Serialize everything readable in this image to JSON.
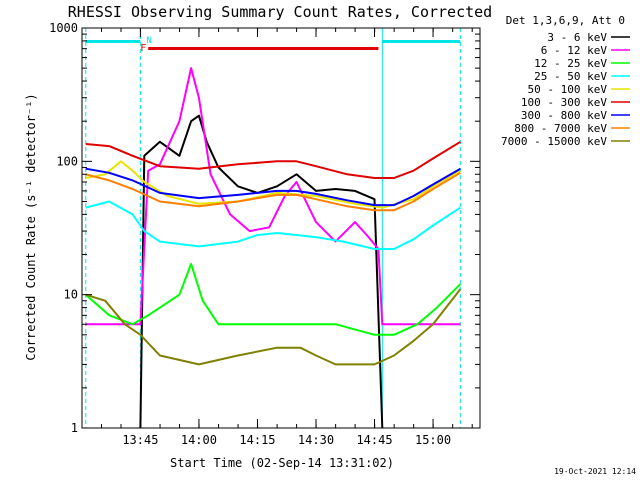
{
  "chart_data": {
    "type": "line",
    "title": "RHESSI Observing Summary Count Rates, Corrected",
    "xlabel": "Start Time (02-Sep-14 13:31:02)",
    "ylabel": "Corrected Count Rate (s⁻¹ detector⁻¹)",
    "yscale": "log",
    "ylim": [
      1,
      1000
    ],
    "xlim_minutes_after_start": [
      0,
      100
    ],
    "x_ticks": [
      "13:45",
      "14:00",
      "14:15",
      "14:30",
      "14:45",
      "15:00"
    ],
    "y_ticks": [
      "1",
      "10",
      "100",
      "1000"
    ],
    "legend_header": "Det 1,3,6,9, Att 0",
    "legend_position": "right, outside plot",
    "grid": false,
    "flags": [
      {
        "label": "N",
        "color": "#00e5e5"
      },
      {
        "label": "F",
        "color": "#e00000"
      }
    ],
    "night_intervals_hhmm": [
      [
        "13:31",
        "13:45"
      ],
      [
        "14:47",
        "15:07"
      ]
    ],
    "flare_interval_hhmm": [
      "13:47",
      "14:46"
    ],
    "footer_stamp": "19-Oct-2021 12:14",
    "series": [
      {
        "name": "3 - 6 keV",
        "color": "#000000",
        "points": [
          [
            "13:45",
            0
          ],
          [
            "13:46",
            110
          ],
          [
            "13:50",
            140
          ],
          [
            "13:55",
            110
          ],
          [
            "13:58",
            200
          ],
          [
            "14:00",
            220
          ],
          [
            "14:02",
            140
          ],
          [
            "14:05",
            90
          ],
          [
            "14:10",
            65
          ],
          [
            "14:15",
            58
          ],
          [
            "14:20",
            65
          ],
          [
            "14:25",
            80
          ],
          [
            "14:30",
            60
          ],
          [
            "14:35",
            62
          ],
          [
            "14:40",
            60
          ],
          [
            "14:45",
            52
          ],
          [
            "14:47",
            0
          ]
        ]
      },
      {
        "name": "6 - 12 keV",
        "color": "#ff00ff",
        "points": [
          [
            "13:31",
            6
          ],
          [
            "13:45",
            6
          ],
          [
            "13:47",
            85
          ],
          [
            "13:50",
            95
          ],
          [
            "13:55",
            200
          ],
          [
            "13:58",
            500
          ],
          [
            "14:00",
            300
          ],
          [
            "14:03",
            80
          ],
          [
            "14:08",
            40
          ],
          [
            "14:13",
            30
          ],
          [
            "14:18",
            32
          ],
          [
            "14:22",
            55
          ],
          [
            "14:25",
            70
          ],
          [
            "14:30",
            35
          ],
          [
            "14:35",
            25
          ],
          [
            "14:40",
            35
          ],
          [
            "14:43",
            28
          ],
          [
            "14:46",
            22
          ],
          [
            "14:47",
            6
          ],
          [
            "15:05",
            6
          ],
          [
            "15:07",
            6
          ]
        ]
      },
      {
        "name": "12 - 25 keV",
        "color": "#00ff00",
        "points": [
          [
            "13:31",
            10
          ],
          [
            "13:37",
            7
          ],
          [
            "13:43",
            6
          ],
          [
            "13:47",
            7
          ],
          [
            "13:55",
            10
          ],
          [
            "13:58",
            17
          ],
          [
            "14:01",
            9
          ],
          [
            "14:05",
            6
          ],
          [
            "14:15",
            6
          ],
          [
            "14:25",
            6
          ],
          [
            "14:35",
            6
          ],
          [
            "14:45",
            5
          ],
          [
            "14:50",
            5
          ],
          [
            "14:56",
            6
          ],
          [
            "15:01",
            8
          ],
          [
            "15:07",
            12
          ]
        ]
      },
      {
        "name": "25 - 50 keV",
        "color": "#00ffff",
        "points": [
          [
            "13:31",
            45
          ],
          [
            "13:37",
            50
          ],
          [
            "13:43",
            40
          ],
          [
            "13:46",
            30
          ],
          [
            "13:50",
            25
          ],
          [
            "14:00",
            23
          ],
          [
            "14:10",
            25
          ],
          [
            "14:15",
            28
          ],
          [
            "14:20",
            29
          ],
          [
            "14:25",
            28
          ],
          [
            "14:30",
            27
          ],
          [
            "14:37",
            25
          ],
          [
            "14:45",
            22
          ],
          [
            "14:50",
            22
          ],
          [
            "14:55",
            26
          ],
          [
            "15:00",
            33
          ],
          [
            "15:07",
            45
          ]
        ]
      },
      {
        "name": "50 - 100 keV",
        "color": "#e5e500",
        "points": [
          [
            "13:31",
            75
          ],
          [
            "13:36",
            80
          ],
          [
            "13:40",
            100
          ],
          [
            "13:43",
            85
          ],
          [
            "13:46",
            70
          ],
          [
            "13:52",
            55
          ],
          [
            "14:00",
            48
          ],
          [
            "14:10",
            50
          ],
          [
            "14:20",
            58
          ],
          [
            "14:30",
            55
          ],
          [
            "14:40",
            48
          ],
          [
            "14:47",
            45
          ],
          [
            "14:55",
            52
          ],
          [
            "15:00",
            65
          ],
          [
            "15:07",
            85
          ]
        ]
      },
      {
        "name": "100 - 300 keV",
        "color": "#e00000",
        "points": [
          [
            "13:31",
            135
          ],
          [
            "13:37",
            130
          ],
          [
            "13:43",
            110
          ],
          [
            "13:50",
            92
          ],
          [
            "14:00",
            88
          ],
          [
            "14:10",
            95
          ],
          [
            "14:20",
            100
          ],
          [
            "14:25",
            100
          ],
          [
            "14:30",
            92
          ],
          [
            "14:38",
            80
          ],
          [
            "14:45",
            75
          ],
          [
            "14:50",
            75
          ],
          [
            "14:55",
            85
          ],
          [
            "15:00",
            105
          ],
          [
            "15:07",
            140
          ]
        ]
      },
      {
        "name": "300 - 800 keV",
        "color": "#0000ff",
        "points": [
          [
            "13:31",
            88
          ],
          [
            "13:37",
            82
          ],
          [
            "13:43",
            72
          ],
          [
            "13:50",
            58
          ],
          [
            "14:00",
            53
          ],
          [
            "14:10",
            56
          ],
          [
            "14:20",
            60
          ],
          [
            "14:25",
            60
          ],
          [
            "14:30",
            57
          ],
          [
            "14:38",
            51
          ],
          [
            "14:45",
            47
          ],
          [
            "14:50",
            47
          ],
          [
            "14:55",
            55
          ],
          [
            "15:00",
            67
          ],
          [
            "15:07",
            88
          ]
        ]
      },
      {
        "name": "800 - 7000 keV",
        "color": "#ff7f00",
        "points": [
          [
            "13:31",
            80
          ],
          [
            "13:37",
            72
          ],
          [
            "13:43",
            62
          ],
          [
            "13:50",
            50
          ],
          [
            "14:00",
            46
          ],
          [
            "14:10",
            50
          ],
          [
            "14:20",
            56
          ],
          [
            "14:25",
            56
          ],
          [
            "14:30",
            52
          ],
          [
            "14:38",
            46
          ],
          [
            "14:45",
            43
          ],
          [
            "14:50",
            43
          ],
          [
            "14:55",
            50
          ],
          [
            "15:00",
            62
          ],
          [
            "15:07",
            82
          ]
        ]
      },
      {
        "name": "7000 - 15000 keV",
        "color": "#808000",
        "points": [
          [
            "13:31",
            10
          ],
          [
            "13:36",
            9
          ],
          [
            "13:41",
            6
          ],
          [
            "13:45",
            5
          ],
          [
            "13:50",
            3.5
          ],
          [
            "14:00",
            3
          ],
          [
            "14:10",
            3.5
          ],
          [
            "14:20",
            4
          ],
          [
            "14:26",
            4
          ],
          [
            "14:30",
            3.5
          ],
          [
            "14:35",
            3
          ],
          [
            "14:45",
            3
          ],
          [
            "14:50",
            3.5
          ],
          [
            "14:55",
            4.5
          ],
          [
            "15:00",
            6
          ],
          [
            "15:07",
            11
          ]
        ]
      }
    ]
  }
}
